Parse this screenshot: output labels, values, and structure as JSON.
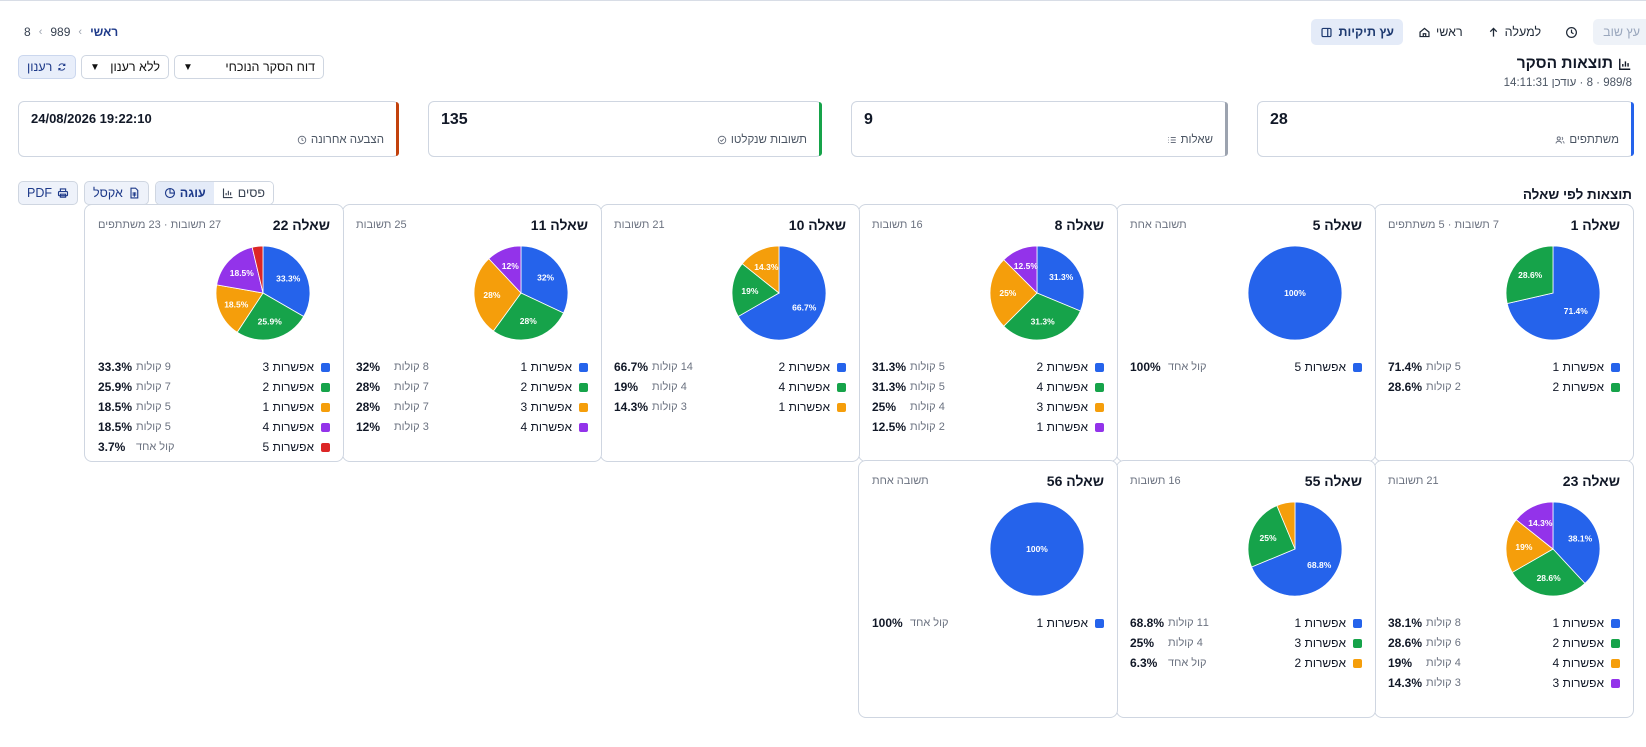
{
  "toolbar": {
    "cut_label": "עץ שוב",
    "history_icon": "history-icon",
    "up_label": "למעלה",
    "home_label": "ראשי",
    "tree_label": "עץ תיקיות"
  },
  "breadcrumb": {
    "home": "ראשי",
    "item1": "989",
    "item2": "8"
  },
  "header": {
    "title": "תוצאות הסקר",
    "subtitle": "989/8 · 8 · עודכן 14:11:31"
  },
  "controls": {
    "report_select": "דוח הסקר הנוכחי",
    "refresh_select": "ללא רענון",
    "refresh_button": "רענון"
  },
  "stats": {
    "participants": {
      "value": "28",
      "label": "משתתפים"
    },
    "questions": {
      "value": "9",
      "label": "שאלות"
    },
    "answers": {
      "value": "135",
      "label": "תשובות שנקלטו"
    },
    "last_vote": {
      "value": "24/08/2026 19:22:10",
      "label": "הצבעה אחרונה"
    }
  },
  "section": {
    "title": "תוצאות לפי שאלה",
    "view_bars": "פסים",
    "view_pie": "עוגה",
    "excel": "אקסל",
    "pdf": "PDF"
  },
  "colors": {
    "blue": "#2563eb",
    "green": "#16a34a",
    "orange": "#f59e0b",
    "purple": "#9333ea",
    "red": "#dc2626"
  },
  "chart_data": [
    {
      "type": "pie",
      "title": "שאלה 1",
      "meta": "7 תשובות · 5 משתתפים",
      "slices": [
        {
          "label": "אפשרות 1",
          "pct": "71.4%",
          "value": 71.4,
          "votes": "5 קולות",
          "color": "#2563eb"
        },
        {
          "label": "אפשרות 2",
          "pct": "28.6%",
          "value": 28.6,
          "votes": "2 קולות",
          "color": "#16a34a"
        }
      ]
    },
    {
      "type": "pie",
      "title": "שאלה 5",
      "meta": "תשובה אחת",
      "slices": [
        {
          "label": "אפשרות 5",
          "pct": "100%",
          "value": 100,
          "votes": "קול אחד",
          "color": "#2563eb"
        }
      ]
    },
    {
      "type": "pie",
      "title": "שאלה 8",
      "meta": "16 תשובות",
      "slices": [
        {
          "label": "אפשרות 2",
          "pct": "31.3%",
          "value": 31.3,
          "votes": "5 קולות",
          "color": "#2563eb"
        },
        {
          "label": "אפשרות 4",
          "pct": "31.3%",
          "value": 31.3,
          "votes": "5 קולות",
          "color": "#16a34a"
        },
        {
          "label": "אפשרות 3",
          "pct": "25%",
          "value": 25,
          "votes": "4 קולות",
          "color": "#f59e0b"
        },
        {
          "label": "אפשרות 1",
          "pct": "12.5%",
          "value": 12.5,
          "votes": "2 קולות",
          "color": "#9333ea"
        }
      ]
    },
    {
      "type": "pie",
      "title": "שאלה 10",
      "meta": "21 תשובות",
      "slices": [
        {
          "label": "אפשרות 2",
          "pct": "66.7%",
          "value": 66.7,
          "votes": "14 קולות",
          "color": "#2563eb"
        },
        {
          "label": "אפשרות 4",
          "pct": "19%",
          "value": 19,
          "votes": "4 קולות",
          "color": "#16a34a"
        },
        {
          "label": "אפשרות 1",
          "pct": "14.3%",
          "value": 14.3,
          "votes": "3 קולות",
          "color": "#f59e0b"
        }
      ]
    },
    {
      "type": "pie",
      "title": "שאלה 11",
      "meta": "25 תשובות",
      "slices": [
        {
          "label": "אפשרות 1",
          "pct": "32%",
          "value": 32,
          "votes": "8 קולות",
          "color": "#2563eb"
        },
        {
          "label": "אפשרות 2",
          "pct": "28%",
          "value": 28,
          "votes": "7 קולות",
          "color": "#16a34a"
        },
        {
          "label": "אפשרות 3",
          "pct": "28%",
          "value": 28,
          "votes": "7 קולות",
          "color": "#f59e0b"
        },
        {
          "label": "אפשרות 4",
          "pct": "12%",
          "value": 12,
          "votes": "3 קולות",
          "color": "#9333ea"
        }
      ]
    },
    {
      "type": "pie",
      "title": "שאלה 22",
      "meta": "27 תשובות · 23 משתתפים",
      "slices": [
        {
          "label": "אפשרות 3",
          "pct": "33.3%",
          "value": 33.3,
          "votes": "9 קולות",
          "color": "#2563eb"
        },
        {
          "label": "אפשרות 2",
          "pct": "25.9%",
          "value": 25.9,
          "votes": "7 קולות",
          "color": "#16a34a"
        },
        {
          "label": "אפשרות 1",
          "pct": "18.5%",
          "value": 18.5,
          "votes": "5 קולות",
          "color": "#f59e0b"
        },
        {
          "label": "אפשרות 4",
          "pct": "18.5%",
          "value": 18.5,
          "votes": "5 קולות",
          "color": "#9333ea"
        },
        {
          "label": "אפשרות 5",
          "pct": "3.7%",
          "value": 3.7,
          "votes": "קול אחד",
          "color": "#dc2626"
        }
      ]
    },
    {
      "type": "pie",
      "title": "שאלה 23",
      "meta": "21 תשובות",
      "slices": [
        {
          "label": "אפשרות 1",
          "pct": "38.1%",
          "value": 38.1,
          "votes": "8 קולות",
          "color": "#2563eb"
        },
        {
          "label": "אפשרות 2",
          "pct": "28.6%",
          "value": 28.6,
          "votes": "6 קולות",
          "color": "#16a34a"
        },
        {
          "label": "אפשרות 4",
          "pct": "19%",
          "value": 19,
          "votes": "4 קולות",
          "color": "#f59e0b"
        },
        {
          "label": "אפשרות 3",
          "pct": "14.3%",
          "value": 14.3,
          "votes": "3 קולות",
          "color": "#9333ea"
        }
      ]
    },
    {
      "type": "pie",
      "title": "שאלה 55",
      "meta": "16 תשובות",
      "slices": [
        {
          "label": "אפשרות 1",
          "pct": "68.8%",
          "value": 68.8,
          "votes": "11 קולות",
          "color": "#2563eb"
        },
        {
          "label": "אפשרות 3",
          "pct": "25%",
          "value": 25,
          "votes": "4 קולות",
          "color": "#16a34a"
        },
        {
          "label": "אפשרות 2",
          "pct": "6.3%",
          "value": 6.3,
          "votes": "קול אחד",
          "color": "#f59e0b"
        }
      ]
    },
    {
      "type": "pie",
      "title": "שאלה 56",
      "meta": "תשובה אחת",
      "slices": [
        {
          "label": "אפשרות 1",
          "pct": "100%",
          "value": 100,
          "votes": "קול אחד",
          "color": "#2563eb"
        }
      ]
    }
  ]
}
